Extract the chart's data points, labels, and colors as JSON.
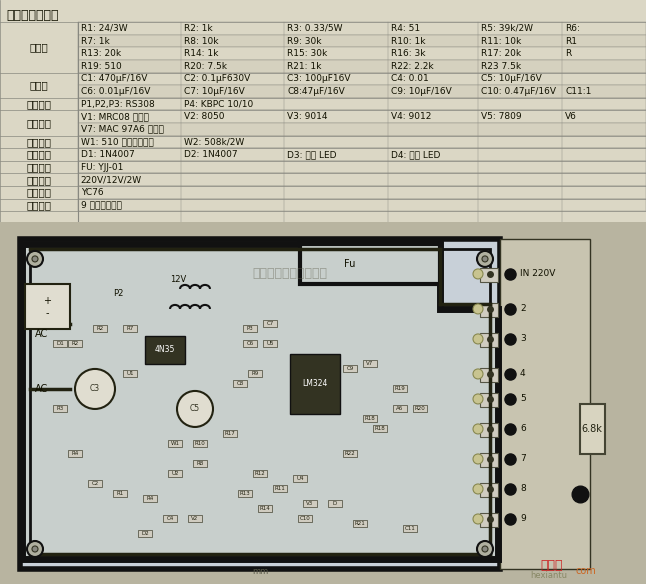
{
  "title": "元器件明组表：",
  "bg_color": "#d8d8c8",
  "table_bg": "#e8e4d8",
  "header_color": "#c8c4b8",
  "border_color": "#888880",
  "text_color": "#222211",
  "table_data": {
    "电阻": {
      "rows": [
        [
          "R1: 24/3W",
          "R2: 1k",
          "R3: 0.33/5W",
          "R4: 51",
          "R5: 39k/2W",
          "R6:"
        ],
        [
          "R7: 1k",
          "R8: 10k",
          "R9: 30k",
          "R10: 1k",
          "R11: 10k",
          "R1"
        ],
        [
          "R13: 20k",
          "R14: 1k",
          "R15: 30k",
          "R16: 3k",
          "R17: 20k",
          "R"
        ],
        [
          "R19: 510",
          "R20: 7.5k",
          "R21: 1k",
          "R22: 2.2k",
          "R23 7.5k",
          ""
        ]
      ]
    },
    "电容": {
      "rows": [
        [
          "C1: 470μF/16V",
          "C2: 0.1μF630V",
          "C3: 100μF16V",
          "C4: 0.01",
          "C5: 10μF/16V",
          ""
        ],
        [
          "C6: 0.01μF/16V",
          "C7: 10μF/16V",
          "C8:47μF/16V",
          "C9: 10μF/16V",
          "C10: 0.47μF/16V",
          "C11:1"
        ]
      ]
    },
    "整流桥": {
      "rows": [
        [
          "P1,P2,P3: RS308",
          "P4: KBPC 10/10",
          "",
          "",
          "",
          ""
        ]
      ]
    },
    "控制管": {
      "rows": [
        [
          "V1: MRC08 可控硅",
          "V2: 8050",
          "V3: 9014",
          "V4: 9012",
          "V5: 7809",
          "V6"
        ],
        [
          "V7: MAC 97A6 可控硅",
          "",
          "",
          "",
          "",
          ""
        ]
      ]
    },
    "电位器": {
      "rows": [
        [
          "W1: 510 欧姆微调电阻",
          "W2: 508k/2W",
          "",
          "",
          "",
          ""
        ]
      ]
    },
    "二极管": {
      "rows": [
        [
          "D1: 1N4007",
          "D2: 1N4007",
          "D3: 绿色 LED",
          "D4: 红色 LED",
          "",
          ""
        ]
      ]
    },
    "保险卡": {
      "rows": [
        [
          "FU: YJJ-01",
          "",
          "",
          "",
          "",
          ""
        ]
      ]
    },
    "变压器": {
      "rows": [
        [
          "220V/12V/2W",
          "",
          "",
          "",
          "",
          ""
        ]
      ]
    },
    "散热片": {
      "rows": [
        [
          "YC76",
          "",
          "",
          "",
          "",
          ""
        ]
      ]
    },
    "接线端": {
      "rows": [
        [
          "9 线焊板接线端",
          "",
          "",
          "",
          "",
          ""
        ]
      ]
    }
  },
  "watermark_text": "杭州将睿科技有限公司",
  "logo_text": "接线图",
  "logo_sub": "hexiantu",
  "logo_url": "com",
  "pcb_note": "6.8k",
  "right_labels": [
    "IN 220V",
    "2",
    "3",
    "4",
    "5",
    "6",
    "7",
    "8",
    "9"
  ],
  "ac_label": "AC",
  "v12_label": "12V",
  "fu_label": "Fu"
}
